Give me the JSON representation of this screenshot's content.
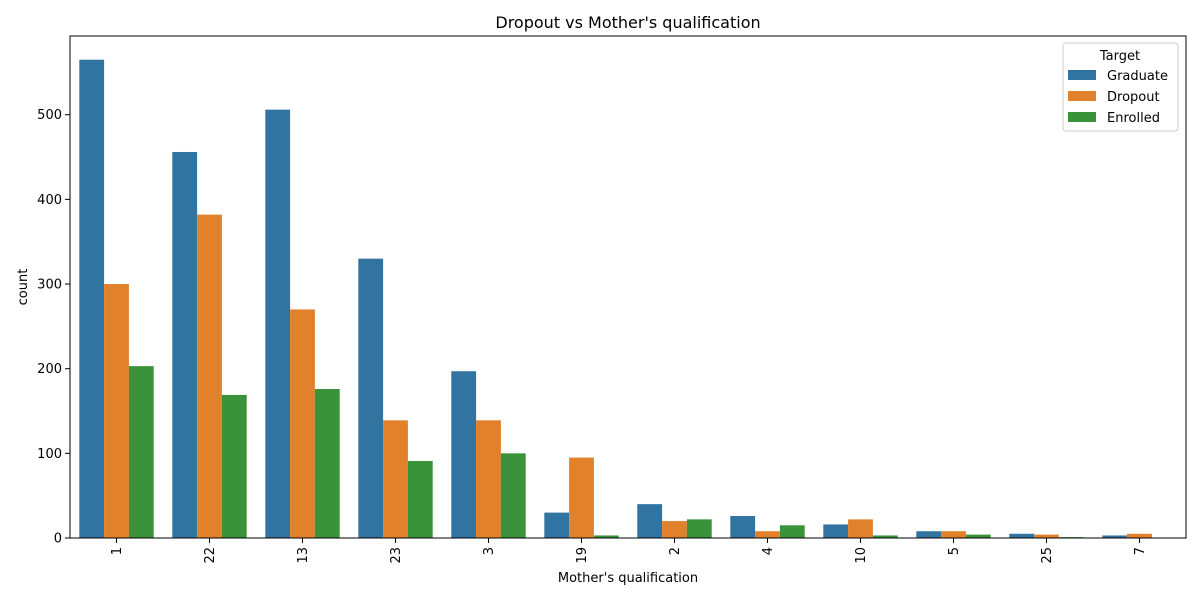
{
  "chart_data": {
    "type": "bar",
    "title": "Dropout vs Mother's qualification",
    "xlabel": "Mother's qualification",
    "ylabel": "count",
    "categories": [
      "1",
      "22",
      "13",
      "23",
      "3",
      "19",
      "2",
      "4",
      "10",
      "5",
      "25",
      "7"
    ],
    "series": [
      {
        "name": "Graduate",
        "color": "#3274a1",
        "values": [
          565,
          456,
          506,
          330,
          197,
          30,
          40,
          26,
          16,
          8,
          5,
          3
        ]
      },
      {
        "name": "Dropout",
        "color": "#e1812c",
        "values": [
          300,
          382,
          270,
          139,
          139,
          95,
          20,
          8,
          22,
          8,
          4,
          5
        ]
      },
      {
        "name": "Enrolled",
        "color": "#3a923a",
        "values": [
          203,
          169,
          176,
          91,
          100,
          3,
          22,
          15,
          3,
          4,
          1,
          0
        ]
      }
    ],
    "yticks": [
      0,
      100,
      200,
      300,
      400,
      500
    ],
    "ylim": [
      0,
      593
    ],
    "legend": {
      "title": "Target",
      "placement": "top-right"
    },
    "grid": false,
    "xtick_rotation": "vertical"
  }
}
